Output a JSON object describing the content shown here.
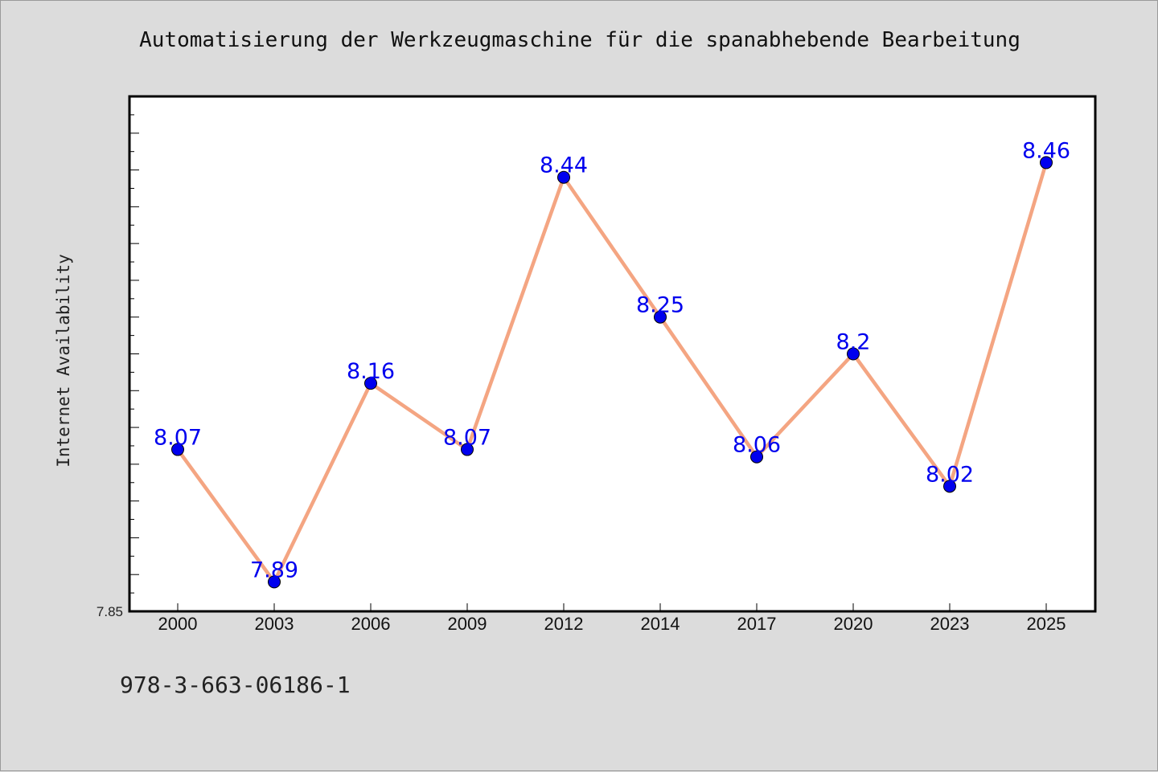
{
  "chart_data": {
    "type": "line",
    "title": "Automatisierung der Werkzeugmaschine für die spanabhebende Bearbeitung",
    "xlabel": "",
    "ylabel": "Internet Availability",
    "categories": [
      "2000",
      "2003",
      "2006",
      "2009",
      "2012",
      "2014",
      "2017",
      "2020",
      "2023",
      "2025"
    ],
    "series": [
      {
        "values": [
          8.07,
          7.89,
          8.16,
          8.07,
          8.44,
          8.25,
          8.06,
          8.2,
          8.02,
          8.46
        ],
        "data_labels": [
          "8.07",
          "7.89",
          "8.16",
          "8.07",
          "8.44",
          "8.25",
          "8.06",
          "8.2",
          "8.02",
          "8.46"
        ]
      }
    ],
    "ylim": [
      7.85,
      8.55
    ],
    "y_tick_labels": [
      "7.85"
    ],
    "grid": false,
    "legend": "none",
    "colors": {
      "line": "#f4a582",
      "marker": "#0000ee",
      "label": "#0000ee",
      "plot_background": "#ffffff",
      "page_background": "#dcdcdc"
    }
  },
  "footer": {
    "isbn": "978-3-663-06186-1"
  }
}
